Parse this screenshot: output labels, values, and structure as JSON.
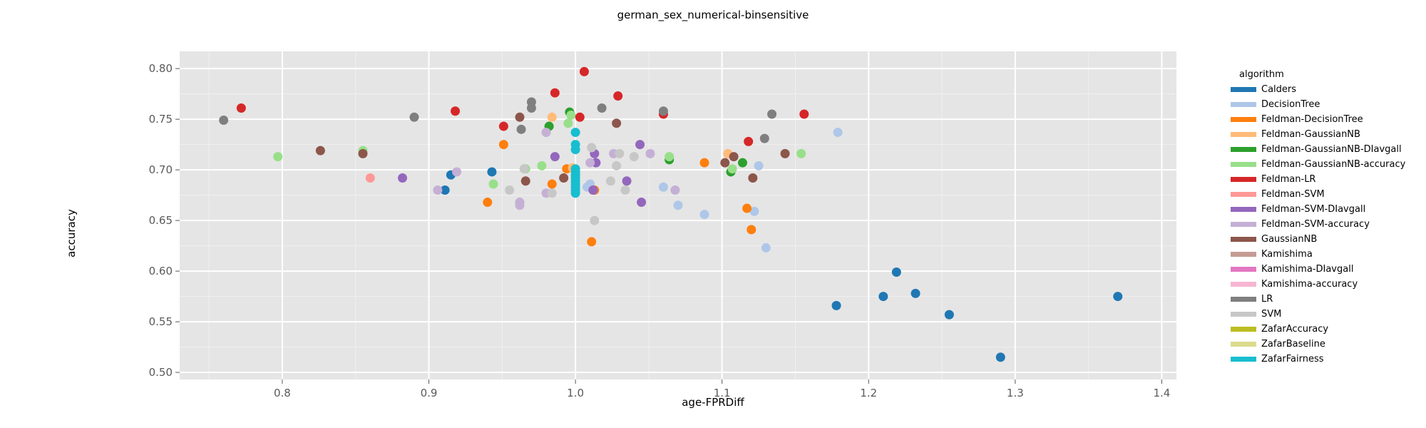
{
  "chart_data": {
    "type": "scatter",
    "title": "german_sex_numerical-binsensitive",
    "xlabel": "age-FPRDiff",
    "ylabel": "accuracy",
    "xlim": [
      0.73,
      1.41
    ],
    "ylim": [
      0.493,
      0.817
    ],
    "x_ticks": [
      0.8,
      0.9,
      1.0,
      1.1,
      1.2,
      1.3,
      1.4
    ],
    "x_tick_labels": [
      "0.8",
      "0.9",
      "1.0",
      "1.1",
      "1.2",
      "1.3",
      "1.4"
    ],
    "y_ticks": [
      0.5,
      0.55,
      0.6,
      0.65,
      0.7,
      0.75,
      0.8
    ],
    "y_tick_labels": [
      "0.50",
      "0.55",
      "0.60",
      "0.65",
      "0.70",
      "0.75",
      "0.80"
    ],
    "grid": true,
    "legend_title": "algorithm",
    "legend_position": "right",
    "series": [
      {
        "name": "Calders",
        "color": "#1f77b4",
        "points": [
          [
            0.915,
            0.695
          ],
          [
            0.911,
            0.68
          ],
          [
            0.943,
            0.698
          ],
          [
            1.178,
            0.566
          ],
          [
            1.219,
            0.599
          ],
          [
            1.21,
            0.575
          ],
          [
            1.232,
            0.578
          ],
          [
            1.255,
            0.557
          ],
          [
            1.29,
            0.515
          ],
          [
            1.37,
            0.575
          ]
        ]
      },
      {
        "name": "DecisionTree",
        "color": "#aec7e8",
        "points": [
          [
            1.179,
            0.737
          ],
          [
            1.125,
            0.704
          ],
          [
            1.122,
            0.659
          ],
          [
            1.13,
            0.623
          ],
          [
            1.06,
            0.683
          ],
          [
            1.07,
            0.665
          ],
          [
            1.088,
            0.656
          ],
          [
            1.01,
            0.686
          ],
          [
            1.008,
            0.683
          ]
        ]
      },
      {
        "name": "Feldman-DecisionTree",
        "color": "#ff7f0e",
        "points": [
          [
            0.951,
            0.725
          ],
          [
            0.94,
            0.668
          ],
          [
            0.994,
            0.701
          ],
          [
            0.984,
            0.686
          ],
          [
            1.011,
            0.629
          ],
          [
            1.013,
            0.68
          ],
          [
            1.088,
            0.707
          ],
          [
            1.117,
            0.662
          ],
          [
            1.12,
            0.641
          ]
        ]
      },
      {
        "name": "Feldman-GaussianNB",
        "color": "#ffbb78",
        "points": [
          [
            0.984,
            0.752
          ],
          [
            0.998,
            0.702
          ],
          [
            1.104,
            0.716
          ]
        ]
      },
      {
        "name": "Feldman-GaussianNB-DIavgall",
        "color": "#2ca02c",
        "points": [
          [
            0.996,
            0.757
          ],
          [
            0.982,
            0.743
          ],
          [
            1.064,
            0.71
          ],
          [
            1.106,
            0.698
          ],
          [
            1.114,
            0.707
          ]
        ]
      },
      {
        "name": "Feldman-GaussianNB-accuracy",
        "color": "#98df8a",
        "points": [
          [
            0.797,
            0.713
          ],
          [
            0.855,
            0.719
          ],
          [
            0.944,
            0.686
          ],
          [
            0.977,
            0.704
          ],
          [
            0.966,
            0.701
          ],
          [
            0.997,
            0.754
          ],
          [
            0.995,
            0.746
          ],
          [
            1.064,
            0.713
          ],
          [
            1.107,
            0.701
          ],
          [
            1.154,
            0.716
          ]
        ]
      },
      {
        "name": "Feldman-LR",
        "color": "#d62728",
        "points": [
          [
            0.772,
            0.761
          ],
          [
            0.918,
            0.758
          ],
          [
            0.951,
            0.743
          ],
          [
            0.986,
            0.776
          ],
          [
            1.006,
            0.797
          ],
          [
            1.003,
            0.752
          ],
          [
            1.029,
            0.773
          ],
          [
            1.06,
            0.755
          ],
          [
            1.118,
            0.728
          ],
          [
            1.156,
            0.755
          ]
        ]
      },
      {
        "name": "Feldman-SVM",
        "color": "#ff9896",
        "points": [
          [
            0.86,
            0.692
          ]
        ]
      },
      {
        "name": "Feldman-SVM-DIavgall",
        "color": "#9467bd",
        "points": [
          [
            0.882,
            0.692
          ],
          [
            0.986,
            0.713
          ],
          [
            1.013,
            0.716
          ],
          [
            1.014,
            0.707
          ],
          [
            1.012,
            0.68
          ],
          [
            1.044,
            0.725
          ],
          [
            1.035,
            0.689
          ],
          [
            1.045,
            0.668
          ]
        ]
      },
      {
        "name": "Feldman-SVM-accuracy",
        "color": "#c5b0d5",
        "points": [
          [
            0.906,
            0.68
          ],
          [
            0.919,
            0.698
          ],
          [
            0.962,
            0.668
          ],
          [
            0.962,
            0.665
          ],
          [
            0.98,
            0.677
          ],
          [
            0.98,
            0.737
          ],
          [
            1.01,
            0.707
          ],
          [
            1.026,
            0.716
          ],
          [
            1.051,
            0.716
          ],
          [
            1.068,
            0.68
          ]
        ]
      },
      {
        "name": "GaussianNB",
        "color": "#8c564b",
        "points": [
          [
            0.826,
            0.719
          ],
          [
            0.855,
            0.716
          ],
          [
            0.962,
            0.752
          ],
          [
            0.966,
            0.689
          ],
          [
            0.992,
            0.692
          ],
          [
            1.028,
            0.746
          ],
          [
            1.102,
            0.707
          ],
          [
            1.108,
            0.713
          ],
          [
            1.121,
            0.692
          ],
          [
            1.143,
            0.716
          ]
        ]
      },
      {
        "name": "Kamishima",
        "color": "#c49c94",
        "points": []
      },
      {
        "name": "Kamishima-DIavgall",
        "color": "#e377c2",
        "points": []
      },
      {
        "name": "Kamishima-accuracy",
        "color": "#f7b6d2",
        "points": []
      },
      {
        "name": "LR",
        "color": "#7f7f7f",
        "points": [
          [
            0.76,
            0.749
          ],
          [
            0.89,
            0.752
          ],
          [
            0.963,
            0.74
          ],
          [
            0.97,
            0.767
          ],
          [
            0.97,
            0.761
          ],
          [
            1.018,
            0.761
          ],
          [
            1.06,
            0.758
          ],
          [
            1.129,
            0.731
          ],
          [
            1.134,
            0.755
          ]
        ]
      },
      {
        "name": "SVM",
        "color": "#c7c7c7",
        "points": [
          [
            0.955,
            0.68
          ],
          [
            0.965,
            0.701
          ],
          [
            0.984,
            0.677
          ],
          [
            1.011,
            0.722
          ],
          [
            1.013,
            0.65
          ],
          [
            1.024,
            0.689
          ],
          [
            1.028,
            0.704
          ],
          [
            1.03,
            0.716
          ],
          [
            1.034,
            0.68
          ],
          [
            1.04,
            0.713
          ]
        ]
      },
      {
        "name": "ZafarAccuracy",
        "color": "#bcbd22",
        "points": []
      },
      {
        "name": "ZafarBaseline",
        "color": "#dbdb8d",
        "points": []
      },
      {
        "name": "ZafarFairness",
        "color": "#17becf",
        "points": [
          [
            1.0,
            0.737
          ],
          [
            1.0,
            0.725
          ],
          [
            1.0,
            0.72
          ],
          [
            1.0,
            0.701
          ],
          [
            1.0,
            0.698
          ],
          [
            1.0,
            0.695
          ],
          [
            1.0,
            0.692
          ],
          [
            1.0,
            0.689
          ],
          [
            1.0,
            0.686
          ],
          [
            1.0,
            0.683
          ],
          [
            1.0,
            0.68
          ],
          [
            1.0,
            0.677
          ]
        ]
      }
    ]
  }
}
